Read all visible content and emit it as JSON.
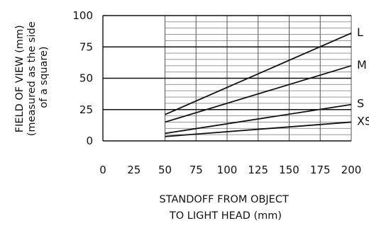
{
  "chart_data": {
    "type": "line",
    "xlabel": [
      "STANDOFF FROM OBJECT",
      "TO LIGHT HEAD (mm)"
    ],
    "ylabel": [
      "FIELD OF VIEW (mm)",
      "(measured as the side",
      "of a square)"
    ],
    "x_ticks": [
      "0",
      "25",
      "50",
      "75",
      "100",
      "125",
      "150",
      "175",
      "200"
    ],
    "y_ticks": [
      "0",
      "25",
      "50",
      "75",
      "100"
    ],
    "xlim": [
      0,
      200
    ],
    "ylim": [
      0,
      100
    ],
    "grid": "horizontal minor every 5, vertical every 25 from 50 to 200",
    "series": [
      {
        "name": "L",
        "x": [
          50,
          200
        ],
        "y": [
          21,
          86
        ]
      },
      {
        "name": "M",
        "x": [
          50,
          200
        ],
        "y": [
          15,
          60
        ]
      },
      {
        "name": "S",
        "x": [
          50,
          200
        ],
        "y": [
          6,
          29
        ]
      },
      {
        "name": "XS",
        "x": [
          50,
          200
        ],
        "y": [
          3.5,
          15
        ]
      }
    ]
  }
}
